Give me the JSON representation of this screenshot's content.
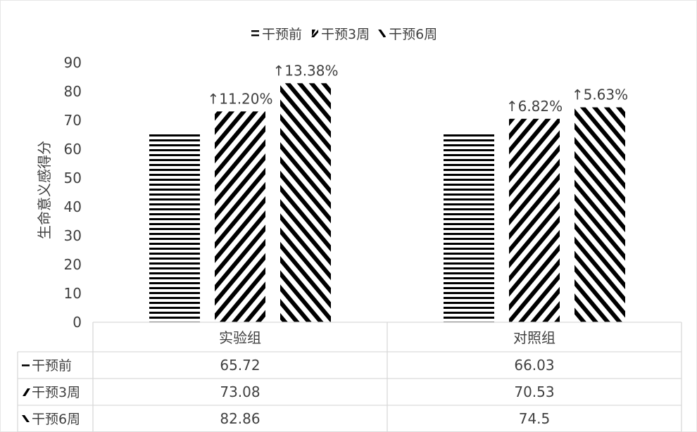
{
  "chart_data": {
    "type": "bar",
    "title": "",
    "xlabel": "",
    "ylabel": "生命意义感得分",
    "ylim": [
      0,
      90
    ],
    "yticks": [
      0,
      10,
      20,
      30,
      40,
      50,
      60,
      70,
      80,
      90
    ],
    "grid": false,
    "legend_position": "top",
    "categories": [
      "实验组",
      "对照组"
    ],
    "series": [
      {
        "name": "干预前",
        "values": [
          65.72,
          66.03
        ],
        "pattern": "horizontal-stripes",
        "table_label": "干预前"
      },
      {
        "name": "干预3周",
        "values": [
          73.08,
          70.53
        ],
        "pattern": "forward-diagonal-stripes",
        "table_label": "干预3周"
      },
      {
        "name": "干预6周",
        "values": [
          82.86,
          74.5
        ],
        "pattern": "backward-diagonal-stripes",
        "table_label": "干预6周"
      }
    ],
    "annotations": [
      {
        "category": "实验组",
        "series": "干预3周",
        "text": "↑11.20%"
      },
      {
        "category": "实验组",
        "series": "干预6周",
        "text": "↑13.38%"
      },
      {
        "category": "对照组",
        "series": "干预3周",
        "text": "↑6.82%"
      },
      {
        "category": "对照组",
        "series": "干预6周",
        "text": "↑5.63%"
      }
    ],
    "data_table": {
      "columns": [
        "实验组",
        "对照组"
      ],
      "rows": [
        {
          "label": "干预前",
          "values": [
            "65.72",
            "66.03"
          ]
        },
        {
          "label": "干预3周",
          "values": [
            "73.08",
            "70.53"
          ]
        },
        {
          "label": "干预6周",
          "values": [
            "82.86",
            "74.5"
          ]
        }
      ]
    }
  }
}
